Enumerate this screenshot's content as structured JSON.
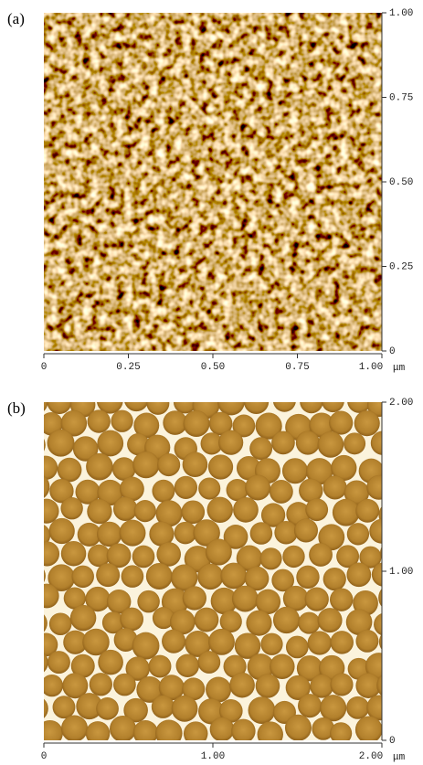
{
  "panels": [
    {
      "label": "(a)",
      "yticks": [
        {
          "value": 0,
          "label": "0"
        },
        {
          "value": 0.25,
          "label": "0.25"
        },
        {
          "value": 0.5,
          "label": "0.50"
        },
        {
          "value": 0.75,
          "label": "0.75"
        },
        {
          "value": 1,
          "label": "1.00"
        }
      ],
      "xticks": [
        {
          "value": 0,
          "label": "0"
        },
        {
          "value": 0.25,
          "label": "0.25"
        },
        {
          "value": 0.5,
          "label": "0.50"
        },
        {
          "value": 0.75,
          "label": "0.75"
        },
        {
          "value": 1,
          "label": "1.00"
        }
      ],
      "range": [
        0,
        1
      ],
      "unit": "μm"
    },
    {
      "label": "(b)",
      "yticks": [
        {
          "value": 0,
          "label": "0"
        },
        {
          "value": 1,
          "label": "1.00"
        },
        {
          "value": 2,
          "label": "2.00"
        }
      ],
      "xticks": [
        {
          "value": 0,
          "label": "0"
        },
        {
          "value": 1,
          "label": "1.00"
        },
        {
          "value": 2,
          "label": "2.00"
        }
      ],
      "range": [
        0,
        2
      ],
      "unit": "μm"
    }
  ]
}
